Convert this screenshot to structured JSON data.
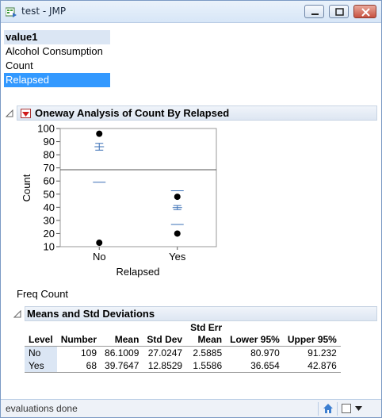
{
  "window": {
    "title": "test - JMP"
  },
  "columns": {
    "header": "value1",
    "items": [
      "Alcohol Consumption",
      "Count",
      "Relapsed"
    ],
    "selected_index": 2
  },
  "oneway": {
    "title": "Oneway Analysis of Count By Relapsed"
  },
  "chart_data": {
    "type": "scatter",
    "title": "",
    "xlabel": "Relapsed",
    "ylabel": "Count",
    "categories": [
      "No",
      "Yes"
    ],
    "ylim": [
      10,
      100
    ],
    "yticks": [
      "10",
      "20",
      "30",
      "40",
      "50",
      "60",
      "70",
      "80",
      "90",
      "100"
    ],
    "grand_mean": 68.6,
    "points": [
      {
        "category": "No",
        "y": 96
      },
      {
        "category": "No",
        "y": 13
      },
      {
        "category": "Yes",
        "y": 48
      },
      {
        "category": "Yes",
        "y": 20
      }
    ],
    "group_means": [
      {
        "category": "No",
        "mean": 86.1009,
        "std_err": 2.5885,
        "std_dev": 27.0247
      },
      {
        "category": "Yes",
        "mean": 39.7647,
        "std_err": 1.5586,
        "std_dev": 12.8529
      }
    ],
    "colors": {
      "points": "#000000",
      "means": "#3a6fb5",
      "reference_line": "#555555"
    }
  },
  "freq_label": "Freq Count",
  "means_table": {
    "title": "Means and Std Deviations",
    "headers": {
      "level": "Level",
      "number": "Number",
      "mean": "Mean",
      "std_dev": "Std Dev",
      "std_err_top": "Std Err",
      "std_err_bottom": "Mean",
      "lower": "Lower 95%",
      "upper": "Upper 95%"
    },
    "rows": [
      {
        "level": "No",
        "number": "109",
        "mean": "86.1009",
        "std_dev": "27.0247",
        "std_err": "2.5885",
        "lower": "80.970",
        "upper": "91.232"
      },
      {
        "level": "Yes",
        "number": "68",
        "mean": "39.7647",
        "std_dev": "12.8529",
        "std_err": "1.5586",
        "lower": "36.654",
        "upper": "42.876"
      }
    ]
  },
  "status": {
    "text": "evaluations done",
    "icons": [
      "home-icon",
      "checkbox-icon",
      "dropdown-arrow-icon"
    ]
  }
}
